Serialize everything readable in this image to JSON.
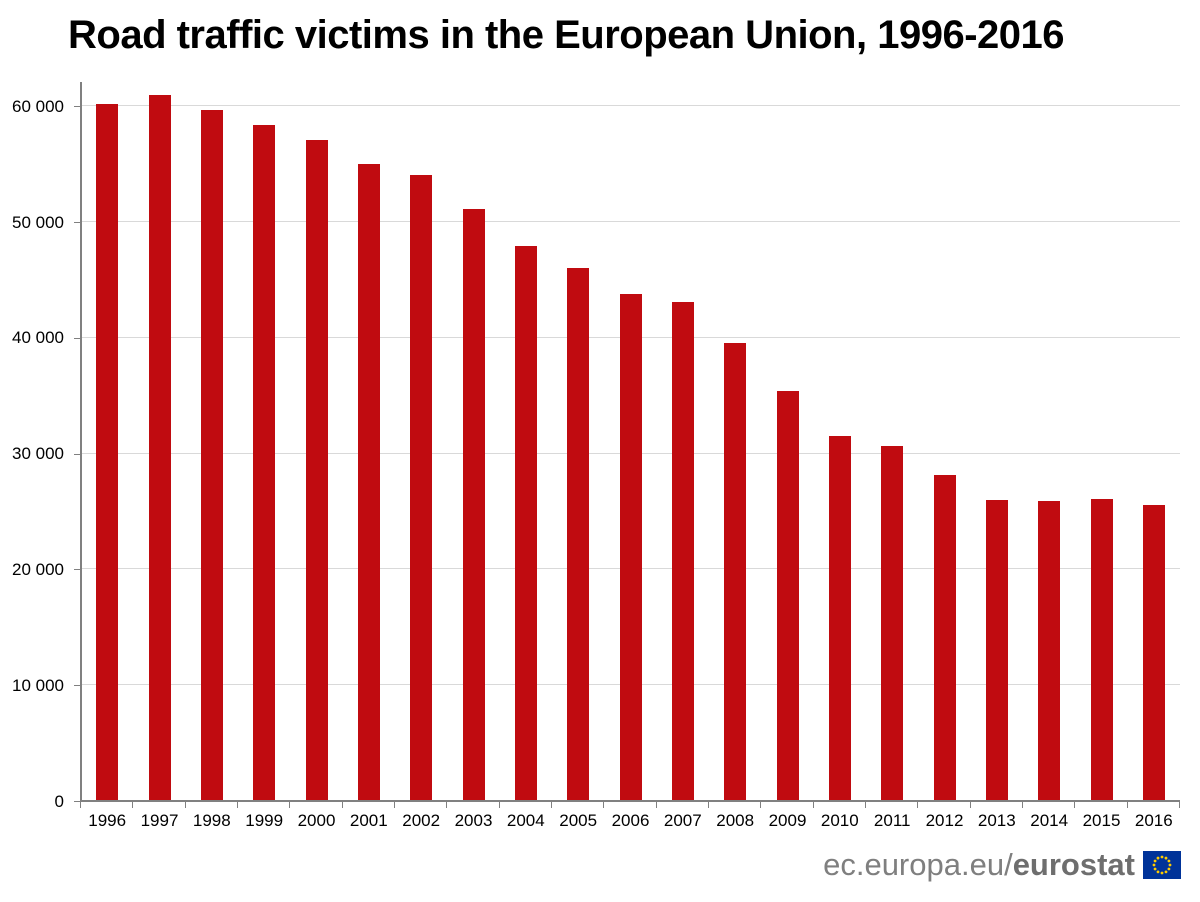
{
  "header": {
    "title": "Road traffic victims in the European Union, 1996-2016"
  },
  "footer": {
    "site_prefix": "ec.europa.eu/",
    "brand": "eurostat",
    "flag_icon": "eu-flag-icon",
    "flag_colors": {
      "field": "#003399",
      "stars": "#ffcc00"
    }
  },
  "colors": {
    "bar": "#c00b10",
    "gridline": "#d9d9d9",
    "axis": "#808080",
    "title_text": "#000000",
    "tick_label_text": "#000000",
    "footer_text": "#7f7f7f",
    "background": "#ffffff"
  },
  "chart_data": {
    "type": "bar",
    "title": "Road traffic victims in the European Union, 1996-2016",
    "series_name": "Road traffic victims",
    "categories": [
      1996,
      1997,
      1998,
      1999,
      2000,
      2001,
      2002,
      2003,
      2004,
      2005,
      2006,
      2007,
      2008,
      2009,
      2010,
      2011,
      2012,
      2013,
      2014,
      2015,
      2016
    ],
    "values": [
      60200,
      61000,
      59700,
      58400,
      57100,
      55000,
      54100,
      51100,
      47900,
      46000,
      43800,
      43100,
      39600,
      35400,
      31500,
      30700,
      28200,
      26000,
      25900,
      26100,
      25600
    ],
    "xlabel": "",
    "ylabel": "",
    "ylim": [
      0,
      62100
    ],
    "yticks": [
      0,
      10000,
      20000,
      30000,
      40000,
      50000,
      60000
    ],
    "ytick_labels": [
      "0",
      "10 000",
      "20 000",
      "30 000",
      "40 000",
      "50 000",
      "60 000"
    ],
    "grid": true,
    "legend": false,
    "legend_position": "none"
  }
}
